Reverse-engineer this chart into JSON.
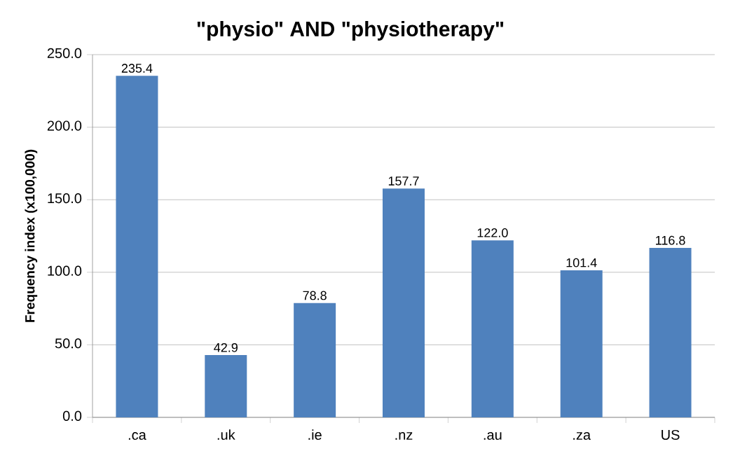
{
  "chart_data": {
    "type": "bar",
    "title": "\"physio\" AND \"physiotherapy\"",
    "ylabel": "Frequency index (x100,000)",
    "categories": [
      ".ca",
      ".uk",
      ".ie",
      ".nz",
      ".au",
      ".za",
      "US"
    ],
    "values": [
      235.4,
      42.9,
      78.8,
      157.7,
      122.0,
      101.4,
      116.8
    ],
    "value_labels": [
      "235.4",
      "42.9",
      "78.8",
      "157.7",
      "122.0",
      "101.4",
      "116.8"
    ],
    "color": "#4f81bd",
    "ylim": [
      0,
      250
    ],
    "yticks": [
      {
        "value": 0,
        "label": "0.0"
      },
      {
        "value": 50,
        "label": "50.0"
      },
      {
        "value": 100,
        "label": "100.0"
      },
      {
        "value": 150,
        "label": "150.0"
      },
      {
        "value": 200,
        "label": "200.0"
      },
      {
        "value": 250,
        "label": "250.0"
      }
    ],
    "grid": "y"
  }
}
